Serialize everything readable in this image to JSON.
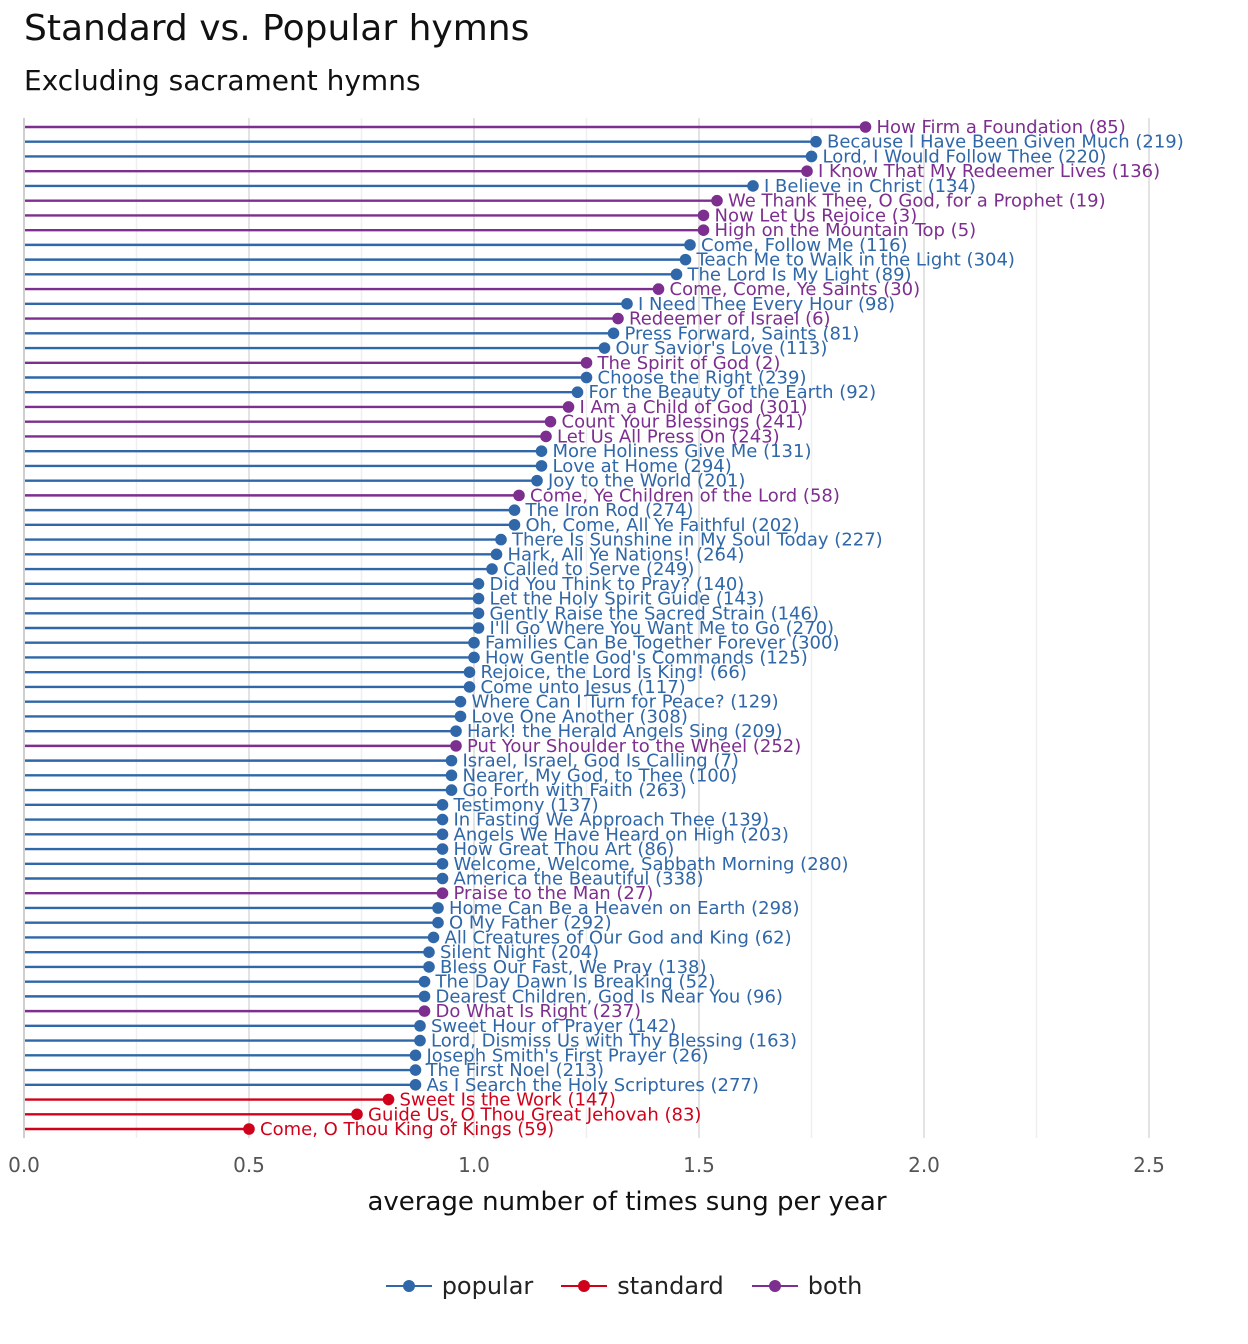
{
  "title": "Standard vs. Popular hymns",
  "subtitle": "Excluding sacrament hymns",
  "colors": {
    "popular": "#2f67a8",
    "standard": "#d0021b",
    "both": "#7c2f8e"
  },
  "legend": [
    {
      "key": "popular",
      "label": "popular"
    },
    {
      "key": "standard",
      "label": "standard"
    },
    {
      "key": "both",
      "label": "both"
    }
  ],
  "chart_data": {
    "type": "lollipop",
    "title": "Standard vs. Popular hymns",
    "subtitle": "Excluding sacrament hymns",
    "xlabel": "average number of times sung per year",
    "xlim": [
      0,
      2.6
    ],
    "xticks": [
      "0.0",
      "0.5",
      "1.0",
      "1.5",
      "2.0",
      "2.5"
    ],
    "grid": true,
    "legend_position": "bottom",
    "points": [
      {
        "label": "How Firm a Foundation (85)",
        "value": 1.87,
        "category": "both"
      },
      {
        "label": "Because I Have Been Given Much (219)",
        "value": 1.76,
        "category": "popular"
      },
      {
        "label": "Lord, I Would Follow Thee (220)",
        "value": 1.75,
        "category": "popular"
      },
      {
        "label": "I Know That My Redeemer Lives (136)",
        "value": 1.74,
        "category": "both"
      },
      {
        "label": "I Believe in Christ (134)",
        "value": 1.62,
        "category": "popular"
      },
      {
        "label": "We Thank Thee, O God, for a Prophet (19)",
        "value": 1.54,
        "category": "both"
      },
      {
        "label": "Now Let Us Rejoice (3)",
        "value": 1.51,
        "category": "both"
      },
      {
        "label": "High on the Mountain Top (5)",
        "value": 1.51,
        "category": "both"
      },
      {
        "label": "Come, Follow Me (116)",
        "value": 1.48,
        "category": "popular"
      },
      {
        "label": "Teach Me to Walk in the Light (304)",
        "value": 1.47,
        "category": "popular"
      },
      {
        "label": "The Lord Is My Light (89)",
        "value": 1.45,
        "category": "popular"
      },
      {
        "label": "Come, Come, Ye Saints (30)",
        "value": 1.41,
        "category": "both"
      },
      {
        "label": "I Need Thee Every Hour (98)",
        "value": 1.34,
        "category": "popular"
      },
      {
        "label": "Redeemer of Israel (6)",
        "value": 1.32,
        "category": "both"
      },
      {
        "label": "Press Forward, Saints (81)",
        "value": 1.31,
        "category": "popular"
      },
      {
        "label": "Our Savior's Love (113)",
        "value": 1.29,
        "category": "popular"
      },
      {
        "label": "The Spirit of God (2)",
        "value": 1.25,
        "category": "both"
      },
      {
        "label": "Choose the Right (239)",
        "value": 1.25,
        "category": "popular"
      },
      {
        "label": "For the Beauty of the Earth (92)",
        "value": 1.23,
        "category": "popular"
      },
      {
        "label": "I Am a Child of God (301)",
        "value": 1.21,
        "category": "both"
      },
      {
        "label": "Count Your Blessings (241)",
        "value": 1.17,
        "category": "both"
      },
      {
        "label": "Let Us All Press On (243)",
        "value": 1.16,
        "category": "both"
      },
      {
        "label": "More Holiness Give Me (131)",
        "value": 1.15,
        "category": "popular"
      },
      {
        "label": "Love at Home (294)",
        "value": 1.15,
        "category": "popular"
      },
      {
        "label": "Joy to the World (201)",
        "value": 1.14,
        "category": "popular"
      },
      {
        "label": "Come, Ye Children of the Lord (58)",
        "value": 1.1,
        "category": "both"
      },
      {
        "label": "The Iron Rod (274)",
        "value": 1.09,
        "category": "popular"
      },
      {
        "label": "Oh, Come, All Ye Faithful (202)",
        "value": 1.09,
        "category": "popular"
      },
      {
        "label": "There Is Sunshine in My Soul Today (227)",
        "value": 1.06,
        "category": "popular"
      },
      {
        "label": "Hark, All Ye Nations! (264)",
        "value": 1.05,
        "category": "popular"
      },
      {
        "label": "Called to Serve (249)",
        "value": 1.04,
        "category": "popular"
      },
      {
        "label": "Did You Think to Pray? (140)",
        "value": 1.01,
        "category": "popular"
      },
      {
        "label": "Let the Holy Spirit Guide (143)",
        "value": 1.01,
        "category": "popular"
      },
      {
        "label": "Gently Raise the Sacred Strain (146)",
        "value": 1.01,
        "category": "popular"
      },
      {
        "label": "I'll Go Where You Want Me to Go (270)",
        "value": 1.01,
        "category": "popular"
      },
      {
        "label": "Families Can Be Together Forever (300)",
        "value": 1.0,
        "category": "popular"
      },
      {
        "label": "How Gentle God's Commands (125)",
        "value": 1.0,
        "category": "popular"
      },
      {
        "label": "Rejoice, the Lord Is King! (66)",
        "value": 0.99,
        "category": "popular"
      },
      {
        "label": "Come unto Jesus (117)",
        "value": 0.99,
        "category": "popular"
      },
      {
        "label": "Where Can I Turn for Peace? (129)",
        "value": 0.97,
        "category": "popular"
      },
      {
        "label": "Love One Another (308)",
        "value": 0.97,
        "category": "popular"
      },
      {
        "label": "Hark! the Herald Angels Sing (209)",
        "value": 0.96,
        "category": "popular"
      },
      {
        "label": "Put Your Shoulder to the Wheel (252)",
        "value": 0.96,
        "category": "both"
      },
      {
        "label": "Israel, Israel, God Is Calling (7)",
        "value": 0.95,
        "category": "popular"
      },
      {
        "label": "Nearer, My God, to Thee (100)",
        "value": 0.95,
        "category": "popular"
      },
      {
        "label": "Go Forth with Faith (263)",
        "value": 0.95,
        "category": "popular"
      },
      {
        "label": "Testimony (137)",
        "value": 0.93,
        "category": "popular"
      },
      {
        "label": "In Fasting We Approach Thee (139)",
        "value": 0.93,
        "category": "popular"
      },
      {
        "label": "Angels We Have Heard on High (203)",
        "value": 0.93,
        "category": "popular"
      },
      {
        "label": "How Great Thou Art (86)",
        "value": 0.93,
        "category": "popular"
      },
      {
        "label": "Welcome, Welcome, Sabbath Morning (280)",
        "value": 0.93,
        "category": "popular"
      },
      {
        "label": "America the Beautiful (338)",
        "value": 0.93,
        "category": "popular"
      },
      {
        "label": "Praise to the Man (27)",
        "value": 0.93,
        "category": "both"
      },
      {
        "label": "Home Can Be a Heaven on Earth (298)",
        "value": 0.92,
        "category": "popular"
      },
      {
        "label": "O My Father (292)",
        "value": 0.92,
        "category": "popular"
      },
      {
        "label": "All Creatures of Our God and King (62)",
        "value": 0.91,
        "category": "popular"
      },
      {
        "label": "Silent Night (204)",
        "value": 0.9,
        "category": "popular"
      },
      {
        "label": "Bless Our Fast, We Pray (138)",
        "value": 0.9,
        "category": "popular"
      },
      {
        "label": "The Day Dawn Is Breaking (52)",
        "value": 0.89,
        "category": "popular"
      },
      {
        "label": "Dearest Children, God Is Near You (96)",
        "value": 0.89,
        "category": "popular"
      },
      {
        "label": "Do What Is Right (237)",
        "value": 0.89,
        "category": "both"
      },
      {
        "label": "Sweet Hour of Prayer (142)",
        "value": 0.88,
        "category": "popular"
      },
      {
        "label": "Lord, Dismiss Us with Thy Blessing (163)",
        "value": 0.88,
        "category": "popular"
      },
      {
        "label": "Joseph Smith's First Prayer (26)",
        "value": 0.87,
        "category": "popular"
      },
      {
        "label": "The First Noel (213)",
        "value": 0.87,
        "category": "popular"
      },
      {
        "label": "As I Search the Holy Scriptures (277)",
        "value": 0.87,
        "category": "popular"
      },
      {
        "label": "Sweet Is the Work (147)",
        "value": 0.81,
        "category": "standard"
      },
      {
        "label": "Guide Us, O Thou Great Jehovah (83)",
        "value": 0.74,
        "category": "standard"
      },
      {
        "label": "Come, O Thou King of Kings (59)",
        "value": 0.5,
        "category": "standard"
      }
    ]
  }
}
